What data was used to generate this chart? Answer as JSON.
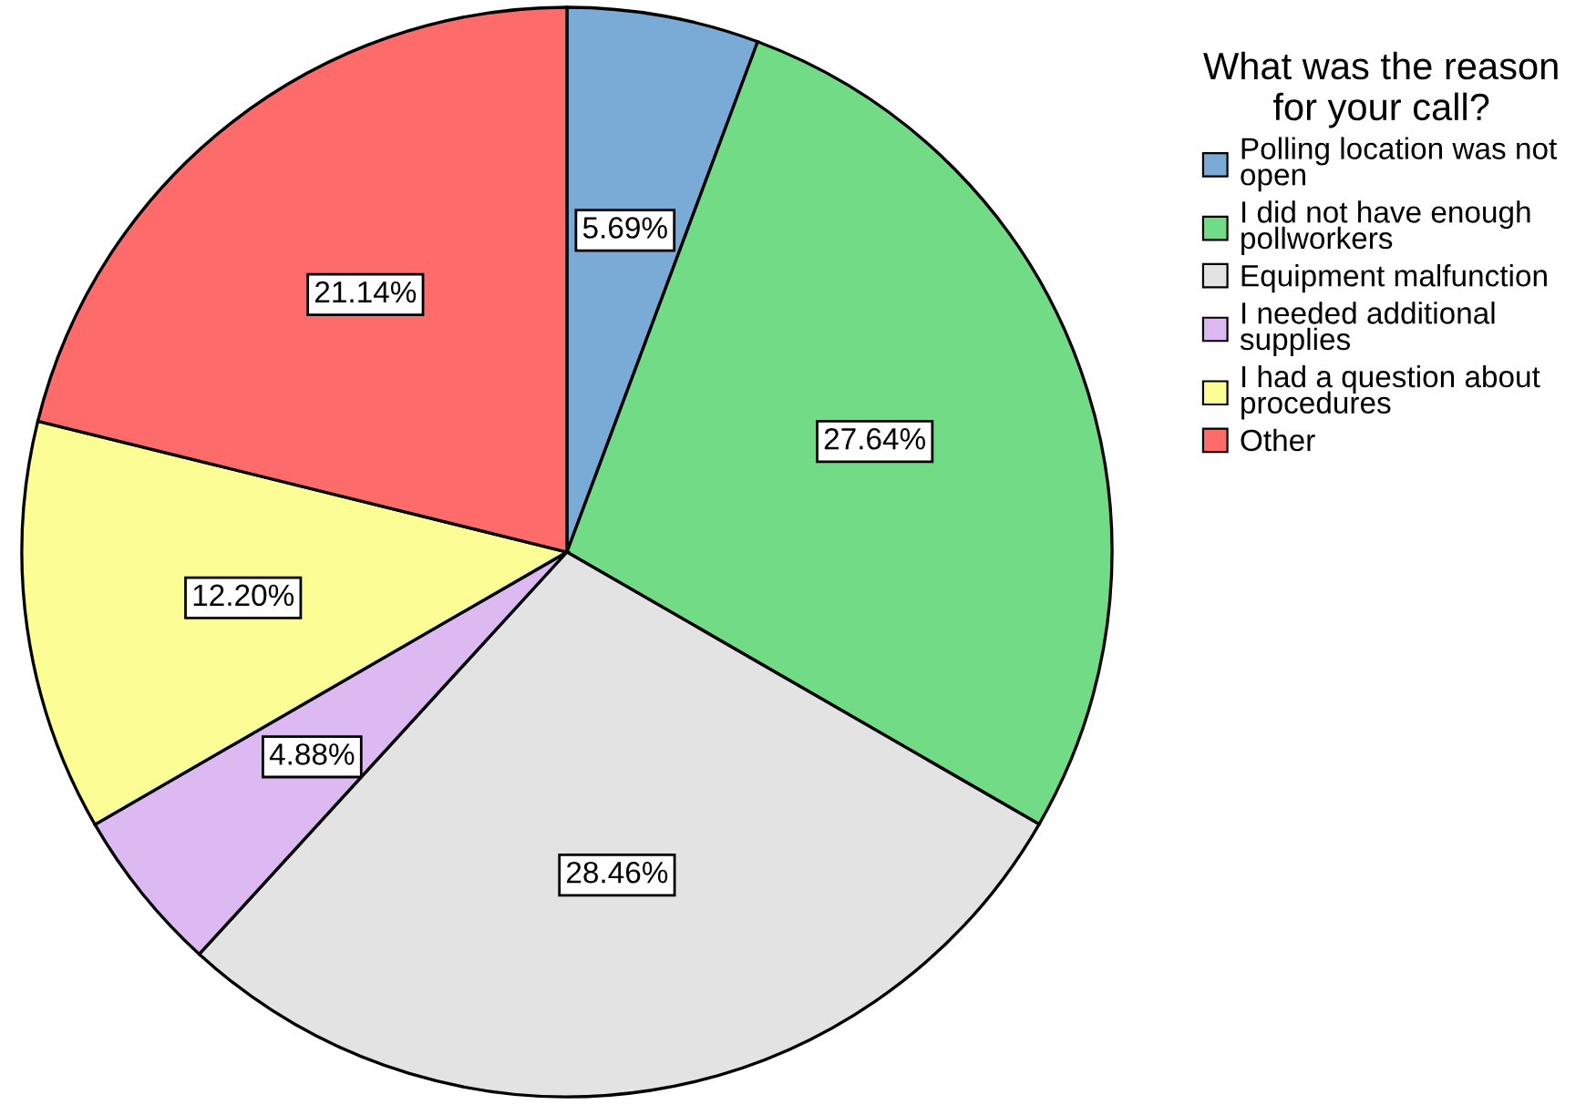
{
  "chart_data": {
    "type": "pie",
    "legend_title": "What was the reason\nfor your call?",
    "categories": [
      "Polling location was not\nopen",
      "I did not have enough\npollworkers",
      "Equipment malfunction",
      "I needed additional\nsupplies",
      "I had a question about\nprocedures",
      "Other"
    ],
    "values": [
      5.69,
      27.64,
      28.46,
      4.88,
      12.2,
      21.14
    ],
    "value_labels": [
      "5.69%",
      "27.64%",
      "28.46%",
      "4.88%",
      "12.20%",
      "21.14%"
    ],
    "colors": [
      "#7aaad6",
      "#72db86",
      "#e3e3e3",
      "#dcb9f0",
      "#fdfd96",
      "#fe6b6b"
    ],
    "legend": "top right"
  }
}
